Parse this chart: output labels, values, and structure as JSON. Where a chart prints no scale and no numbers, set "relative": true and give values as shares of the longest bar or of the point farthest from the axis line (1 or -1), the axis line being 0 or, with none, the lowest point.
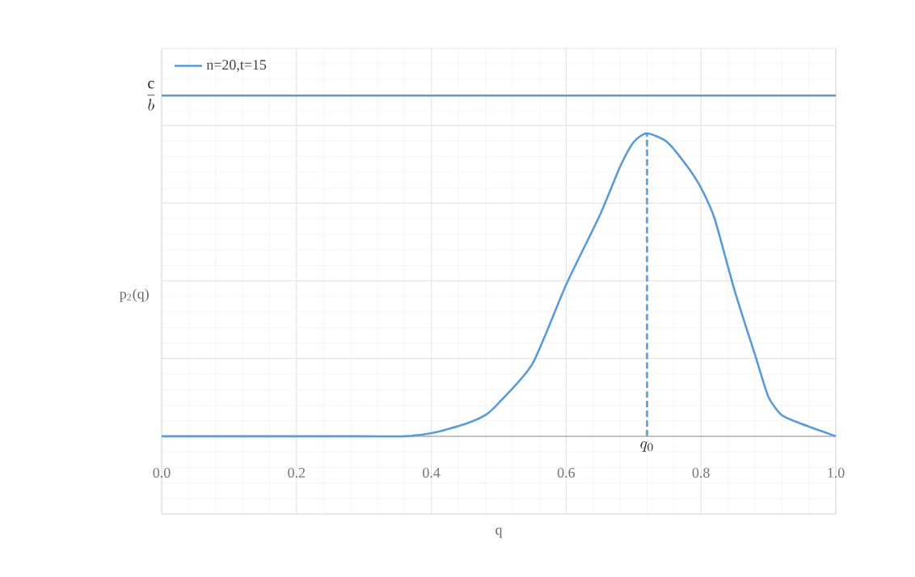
{
  "chart_data": {
    "type": "line",
    "relative": true,
    "xlabel": "q",
    "ylabel": "p$_{2}$(q)",
    "xlim": [
      0.0,
      1.0
    ],
    "xticks": [
      {
        "value": 0,
        "label": "0.0"
      },
      {
        "value": 0.2,
        "label": "0.2"
      },
      {
        "value": 0.4,
        "label": "0.4"
      },
      {
        "value": 0.6,
        "label": "0.6"
      },
      {
        "value": 0.8,
        "label": "0.8"
      },
      {
        "value": 1,
        "label": "1.0"
      }
    ],
    "grid": true,
    "legend": "top left",
    "marker": "none",
    "line_style": "solid",
    "series": [
      {
        "name": "n=20,t=15",
        "color": "#5b9bd5",
        "x": [
          0,
          0.1,
          0.2,
          0.3,
          0.36,
          0.4,
          0.45,
          0.48,
          0.5,
          0.55,
          0.6,
          0.65,
          0.68,
          0.7,
          0.72,
          0.75,
          0.78,
          0.8,
          0.82,
          0.85,
          0.88,
          0.9,
          0.92,
          0.95,
          1.0
        ],
        "values": [
          0,
          0,
          0,
          0,
          0,
          0.009,
          0.036,
          0.062,
          0.098,
          0.213,
          0.445,
          0.649,
          0.791,
          0.863,
          0.889,
          0.863,
          0.791,
          0.729,
          0.64,
          0.427,
          0.24,
          0.116,
          0.062,
          0.036,
          0
        ]
      },
      {
        "color": "#5b9bd5",
        "x": [
          0,
          1.0
        ],
        "values": [
          1,
          1
        ]
      },
      {
        "color": "#5b9bd5",
        "line_style": "dashed",
        "x": [
          0.72,
          0.72
        ],
        "values": [
          0,
          0.889
        ]
      }
    ],
    "annotations": [
      {
        "text": "\\frac{\\mathrm{c}}{b}",
        "x": 0,
        "y": 1
      },
      {
        "text": "q_0",
        "x": 0.72,
        "y": 0
      }
    ]
  }
}
